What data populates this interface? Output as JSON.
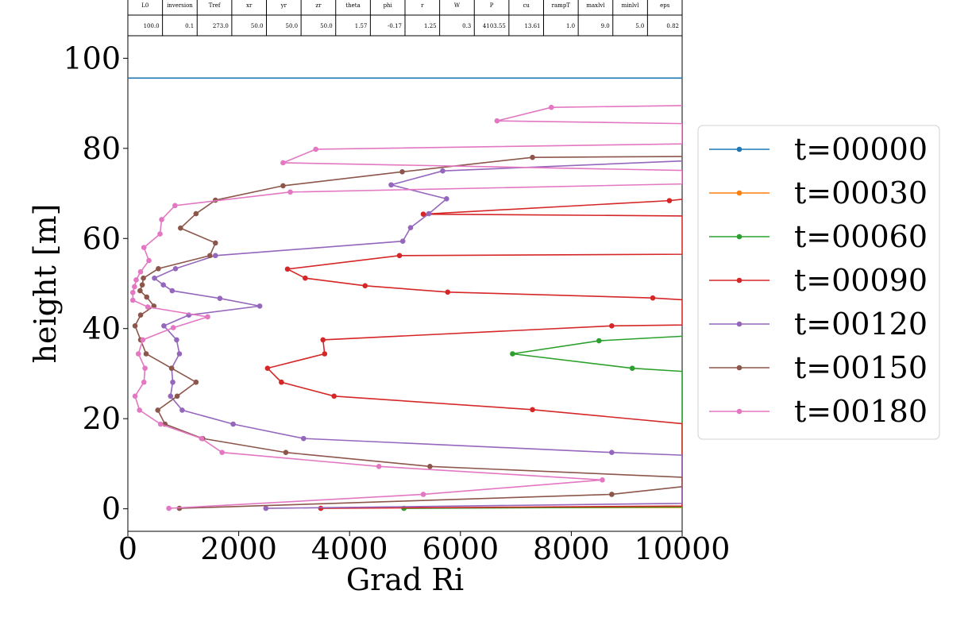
{
  "params_table": {
    "headers": [
      "L0",
      "inversion",
      "Tref",
      "xr",
      "yr",
      "zr",
      "theta",
      "phi",
      "r",
      "W",
      "P",
      "cu",
      "rampT",
      "maxlvl",
      "minlvl",
      "eps"
    ],
    "values": [
      "100.0",
      "0.1",
      "273.0",
      "50.0",
      "50.0",
      "50.0",
      "1.57",
      "-0.17",
      "1.25",
      "0.3",
      "4103.55",
      "13.61",
      "1.0",
      "9.0",
      "5.0",
      "0.82"
    ]
  },
  "chart_data": {
    "type": "line",
    "title": "",
    "xlabel": "Grad Ri",
    "ylabel": "height [m]",
    "xlim": [
      0,
      10000
    ],
    "ylim": [
      -5,
      105
    ],
    "xticks": [
      0,
      2000,
      4000,
      6000,
      8000,
      10000
    ],
    "yticks": [
      0,
      20,
      40,
      60,
      80,
      100
    ],
    "xtick_labels": [
      "0",
      "2000",
      "4000",
      "6000",
      "8000",
      "10000"
    ],
    "ytick_labels": [
      "0",
      "20",
      "40",
      "60",
      "80",
      "100"
    ],
    "grid": false,
    "legend_position": "outside-right",
    "series": [
      {
        "name": "t=00000",
        "color": "#1f77b4",
        "markers": false,
        "points": [
          [
            0,
            95.6
          ],
          [
            10000,
            95.6
          ]
        ]
      },
      {
        "name": "t=00030",
        "color": "#ff7f0e",
        "markers": false,
        "points": [
          [
            4980,
            0.2
          ],
          [
            10000,
            0.3
          ]
        ]
      },
      {
        "name": "t=00060",
        "color": "#2ca02c",
        "markers": true,
        "points": [
          [
            4980,
            0.1
          ],
          [
            10000,
            0.4
          ],
          [
            10000,
            30.5
          ],
          [
            9100,
            31.2
          ],
          [
            6940,
            34.4
          ],
          [
            8500,
            37.3
          ],
          [
            10000,
            38.3
          ]
        ]
      },
      {
        "name": "t=00090",
        "color": "#d62728",
        "markers": true,
        "points": [
          [
            3480,
            0.1
          ],
          [
            10000,
            0.6
          ],
          [
            10000,
            18.9
          ],
          [
            7300,
            22.0
          ],
          [
            3720,
            25.0
          ],
          [
            2770,
            28.1
          ],
          [
            2520,
            31.2
          ],
          [
            3550,
            34.4
          ],
          [
            3520,
            37.5
          ],
          [
            8730,
            40.6
          ],
          [
            10000,
            40.8
          ],
          [
            10000,
            46.4
          ],
          [
            9470,
            46.8
          ],
          [
            5770,
            48.1
          ],
          [
            4280,
            49.5
          ],
          [
            3200,
            51.2
          ],
          [
            2880,
            53.2
          ],
          [
            4900,
            56.2
          ],
          [
            10000,
            56.5
          ],
          [
            10000,
            65.0
          ],
          [
            5330,
            65.4
          ],
          [
            9770,
            68.4
          ],
          [
            10000,
            68.7
          ]
        ]
      },
      {
        "name": "t=00120",
        "color": "#9467bd",
        "markers": true,
        "points": [
          [
            2490,
            0.1
          ],
          [
            10000,
            1.2
          ],
          [
            10000,
            11.9
          ],
          [
            8730,
            12.5
          ],
          [
            3170,
            15.6
          ],
          [
            1900,
            18.8
          ],
          [
            980,
            21.9
          ],
          [
            770,
            25.0
          ],
          [
            810,
            28.1
          ],
          [
            790,
            31.2
          ],
          [
            930,
            34.4
          ],
          [
            880,
            37.5
          ],
          [
            650,
            40.6
          ],
          [
            1100,
            43.0
          ],
          [
            2380,
            45.0
          ],
          [
            1660,
            46.7
          ],
          [
            800,
            48.4
          ],
          [
            640,
            49.7
          ],
          [
            480,
            51.2
          ],
          [
            860,
            53.3
          ],
          [
            1580,
            56.2
          ],
          [
            4960,
            59.4
          ],
          [
            5100,
            62.4
          ],
          [
            5430,
            65.5
          ],
          [
            5750,
            68.8
          ],
          [
            4750,
            71.9
          ],
          [
            5680,
            75.0
          ],
          [
            10000,
            77.2
          ]
        ]
      },
      {
        "name": "t=00150",
        "color": "#8c564b",
        "markers": true,
        "points": [
          [
            930,
            0.1
          ],
          [
            8730,
            3.2
          ],
          [
            10000,
            4.9
          ],
          [
            10000,
            7.0
          ],
          [
            5450,
            9.4
          ],
          [
            2850,
            12.5
          ],
          [
            1350,
            15.6
          ],
          [
            670,
            18.8
          ],
          [
            540,
            21.9
          ],
          [
            890,
            25.0
          ],
          [
            1230,
            28.1
          ],
          [
            790,
            31.2
          ],
          [
            330,
            34.4
          ],
          [
            230,
            37.5
          ],
          [
            130,
            40.6
          ],
          [
            230,
            43.0
          ],
          [
            470,
            45.0
          ],
          [
            340,
            47.0
          ],
          [
            220,
            48.4
          ],
          [
            260,
            49.7
          ],
          [
            280,
            51.2
          ],
          [
            550,
            53.3
          ],
          [
            1480,
            56.2
          ],
          [
            1580,
            59.0
          ],
          [
            950,
            62.3
          ],
          [
            1230,
            65.5
          ],
          [
            1580,
            68.5
          ],
          [
            2800,
            71.7
          ],
          [
            4950,
            74.8
          ],
          [
            7300,
            78.0
          ],
          [
            10000,
            78.2
          ]
        ]
      },
      {
        "name": "t=00180",
        "color": "#e377c2",
        "markers": true,
        "points": [
          [
            740,
            0.1
          ],
          [
            5330,
            3.2
          ],
          [
            8560,
            6.4
          ],
          [
            4530,
            9.4
          ],
          [
            1700,
            12.5
          ],
          [
            1330,
            15.6
          ],
          [
            590,
            18.8
          ],
          [
            210,
            21.9
          ],
          [
            130,
            25.0
          ],
          [
            290,
            28.1
          ],
          [
            310,
            31.2
          ],
          [
            190,
            34.4
          ],
          [
            270,
            37.5
          ],
          [
            820,
            40.2
          ],
          [
            1440,
            42.6
          ],
          [
            360,
            44.8
          ],
          [
            90,
            46.3
          ],
          [
            90,
            48.0
          ],
          [
            120,
            49.3
          ],
          [
            150,
            50.8
          ],
          [
            230,
            52.6
          ],
          [
            380,
            55.1
          ],
          [
            290,
            58.0
          ],
          [
            580,
            61.0
          ],
          [
            610,
            64.2
          ],
          [
            850,
            67.3
          ],
          [
            2930,
            70.3
          ],
          [
            10000,
            72.1
          ],
          [
            10000,
            75.1
          ],
          [
            2800,
            76.8
          ],
          [
            3390,
            79.8
          ],
          [
            10000,
            81.0
          ],
          [
            10000,
            85.5
          ],
          [
            6660,
            86.1
          ],
          [
            7640,
            89.1
          ],
          [
            10000,
            89.5
          ]
        ]
      }
    ]
  }
}
